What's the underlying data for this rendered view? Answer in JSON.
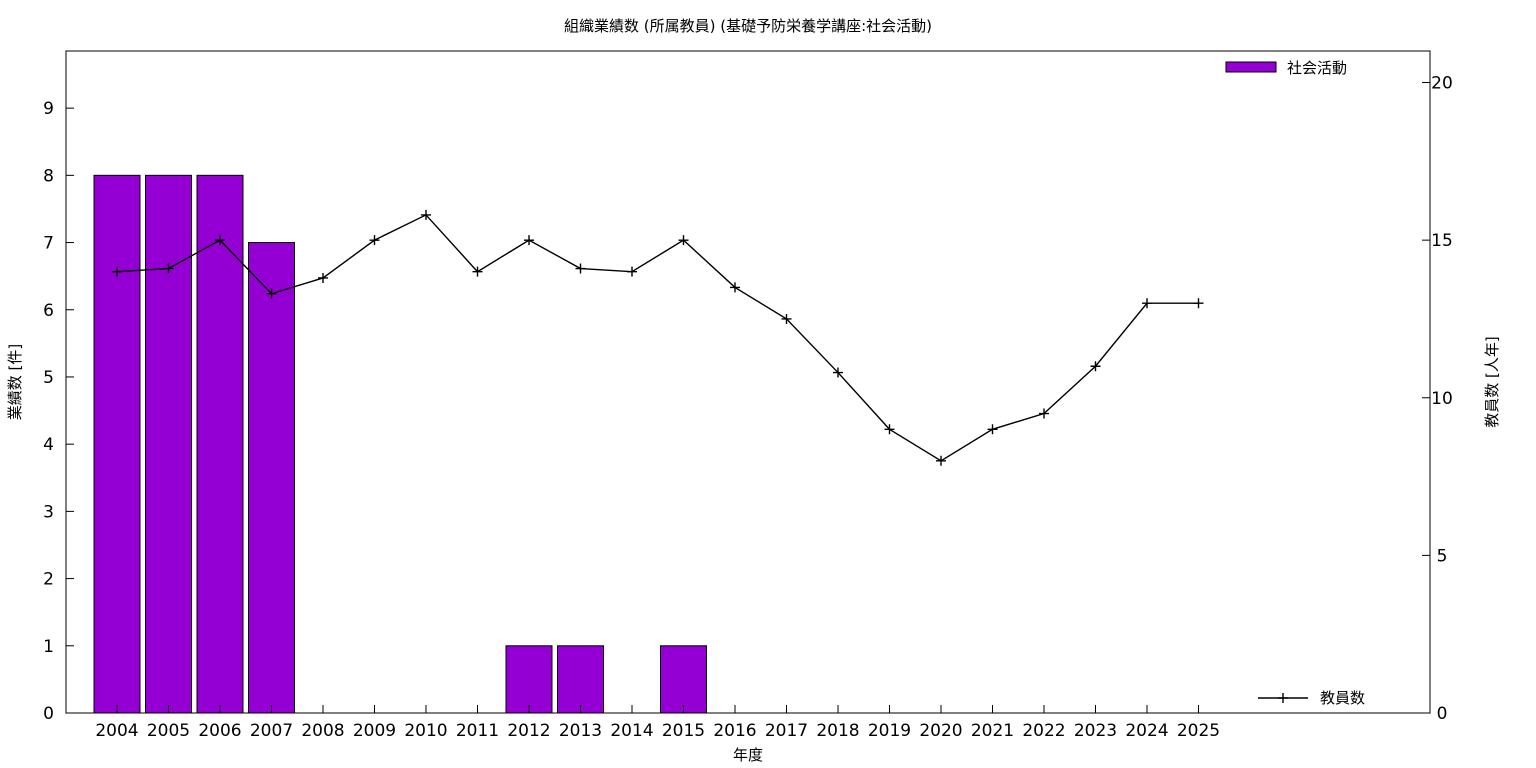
{
  "chart_data": {
    "type": "bar",
    "title": "組織業績数 (所属教員) (基礎予防栄養学講座:社会活動)",
    "xlabel": "年度",
    "ylabel": "業績数 [件]",
    "y2label": "教員数 [人年]",
    "categories": [
      "2004",
      "2005",
      "2006",
      "2007",
      "2008",
      "2009",
      "2010",
      "2011",
      "2012",
      "2013",
      "2014",
      "2015",
      "2016",
      "2017",
      "2018",
      "2019",
      "2020",
      "2021",
      "2022",
      "2023",
      "2024",
      "2025"
    ],
    "ylim": [
      0,
      9.85
    ],
    "yticks": [
      0,
      1,
      2,
      3,
      4,
      5,
      6,
      7,
      8,
      9
    ],
    "y2lim": [
      0,
      21
    ],
    "y2ticks": [
      0,
      5,
      10,
      15,
      20
    ],
    "grid": false,
    "series": [
      {
        "name": "社会活動",
        "type": "bar",
        "axis": "left",
        "color": "#9400D3",
        "values": [
          8,
          8,
          8,
          7,
          0,
          0,
          0,
          0,
          1,
          1,
          0,
          1,
          0,
          0,
          0,
          0,
          0,
          0,
          0,
          0,
          0,
          0
        ]
      },
      {
        "name": "教員数",
        "type": "line",
        "axis": "right",
        "color": "#000000",
        "marker": "plus",
        "values": [
          14,
          14.1,
          15,
          13.3,
          13.8,
          15,
          15.8,
          14,
          15,
          14.1,
          14,
          15,
          13.5,
          12.5,
          10.8,
          9,
          8,
          9,
          9.5,
          11,
          13,
          13
        ]
      }
    ],
    "legend": [
      {
        "label": "社会活動",
        "position": "top-right"
      },
      {
        "label": "教員数",
        "position": "bottom-right"
      }
    ]
  }
}
